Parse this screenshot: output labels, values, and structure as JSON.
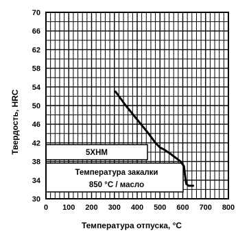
{
  "chart_data": {
    "type": "line",
    "ylabel": "Твердость, HRC",
    "xlabel": "Температура отпуска, °C",
    "xlim": [
      0,
      800
    ],
    "ylim": [
      30,
      70
    ],
    "x_ticks": [
      0,
      100,
      200,
      300,
      400,
      500,
      600,
      700,
      800
    ],
    "y_ticks": [
      30,
      34,
      38,
      42,
      46,
      50,
      54,
      58,
      62,
      66,
      70
    ],
    "grid": true,
    "series": [
      {
        "x": [
          305,
          350,
          400,
          450,
          480,
          500,
          520,
          550,
          590,
          605,
          610,
          615,
          625,
          645
        ],
        "y": [
          53,
          50,
          47,
          44,
          42,
          41,
          40.5,
          39.5,
          38,
          37,
          35,
          33.2,
          32.8,
          32.8
        ]
      }
    ],
    "annotations": {
      "steel_label": "5ХНМ",
      "quench_line1": "Температура закалки",
      "quench_line2": "850 °C / масло"
    }
  }
}
